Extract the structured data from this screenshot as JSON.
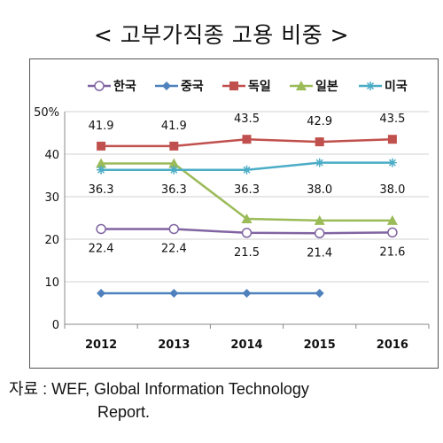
{
  "page": {
    "title": "< 고부가직종 고용 비중 >",
    "source_line1": "자료 : WEF, Global Information Technology",
    "source_line2": "Report."
  },
  "chart_data": {
    "type": "line",
    "categories": [
      "2012",
      "2013",
      "2014",
      "2015",
      "2016"
    ],
    "ylim": [
      0,
      50
    ],
    "yticks": [
      "0",
      "10",
      "20",
      "30",
      "40",
      "50%"
    ],
    "grid": true,
    "legend_position": "top",
    "series": [
      {
        "name": "한국",
        "marker": "circle",
        "color": "#8064a2",
        "values": [
          22.4,
          22.4,
          21.5,
          21.4,
          21.6
        ],
        "labels": [
          "22.4",
          "22.4",
          "21.5",
          "21.4",
          "21.6"
        ]
      },
      {
        "name": "중국",
        "marker": "diamond",
        "color": "#4f81bd",
        "values": [
          7.3,
          7.3,
          7.3,
          7.3,
          null
        ],
        "labels": []
      },
      {
        "name": "독일",
        "marker": "square",
        "color": "#c0504d",
        "values": [
          41.9,
          41.9,
          43.5,
          42.9,
          43.5
        ],
        "labels": [
          "41.9",
          "41.9",
          "43.5",
          "42.9",
          "43.5"
        ]
      },
      {
        "name": "일본",
        "marker": "triangle",
        "color": "#9bbb59",
        "values": [
          37.8,
          37.8,
          24.8,
          24.4,
          24.4
        ],
        "labels": []
      },
      {
        "name": "미국",
        "marker": "star",
        "color": "#4bacc6",
        "values": [
          36.3,
          36.3,
          36.3,
          38.0,
          38.0
        ],
        "labels": [
          "36.3",
          "36.3",
          "36.3",
          "38.0",
          "38.0"
        ]
      }
    ]
  }
}
